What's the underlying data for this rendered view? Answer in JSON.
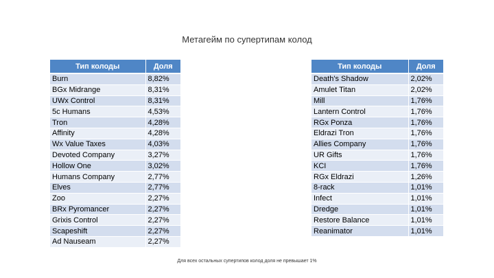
{
  "title": "Метагейм по супертипам колод",
  "columns": {
    "deck_type": "Тип колоды",
    "share": "Доля"
  },
  "left_table": [
    {
      "name": "Burn",
      "share": "8,82%"
    },
    {
      "name": "BGx Midrange",
      "share": "8,31%"
    },
    {
      "name": "UWx Control",
      "share": "8,31%"
    },
    {
      "name": "5c Humans",
      "share": "4,53%"
    },
    {
      "name": "Tron",
      "share": "4,28%"
    },
    {
      "name": "Affinity",
      "share": "4,28%"
    },
    {
      "name": "Wx Value Taxes",
      "share": "4,03%"
    },
    {
      "name": "Devoted Company",
      "share": "3,27%"
    },
    {
      "name": "Hollow One",
      "share": "3,02%"
    },
    {
      "name": "Humans Company",
      "share": "2,77%"
    },
    {
      "name": "Elves",
      "share": "2,77%"
    },
    {
      "name": "Zoo",
      "share": "2,27%"
    },
    {
      "name": "BRx Pyromancer",
      "share": "2,27%"
    },
    {
      "name": "Grixis Control",
      "share": "2,27%"
    },
    {
      "name": "Scapeshift",
      "share": "2,27%"
    },
    {
      "name": "Ad Nauseam",
      "share": "2,27%"
    }
  ],
  "right_table": [
    {
      "name": "Death's Shadow",
      "share": "2,02%"
    },
    {
      "name": "Amulet Titan",
      "share": "2,02%"
    },
    {
      "name": "Mill",
      "share": "1,76%"
    },
    {
      "name": "Lantern Control",
      "share": "1,76%"
    },
    {
      "name": "RGx Ponza",
      "share": "1,76%"
    },
    {
      "name": "Eldrazi Tron",
      "share": "1,76%"
    },
    {
      "name": "Allies Company",
      "share": "1,76%"
    },
    {
      "name": "UR Gifts",
      "share": "1,76%"
    },
    {
      "name": "KCI",
      "share": "1,76%"
    },
    {
      "name": "RGx Eldrazi",
      "share": "1,26%"
    },
    {
      "name": "8-rack",
      "share": "1,01%"
    },
    {
      "name": "Infect",
      "share": "1,01%"
    },
    {
      "name": "Dredge",
      "share": "1,01%"
    },
    {
      "name": "Restore Balance",
      "share": "1,01%"
    },
    {
      "name": "Reanimator",
      "share": "1,01%"
    }
  ],
  "footnote": "Для всех остальных супертипов колод доля не превышает 1%"
}
